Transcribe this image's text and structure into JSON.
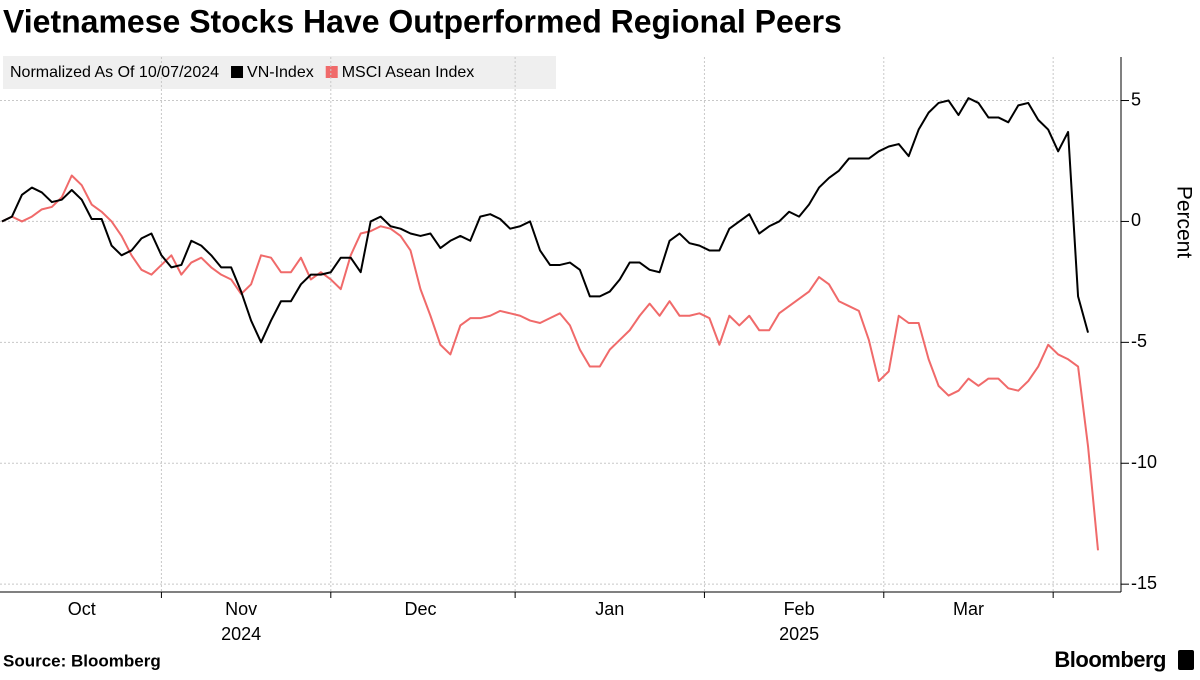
{
  "chart_data": {
    "type": "line",
    "title": "Vietnamese Stocks Have Outperformed Regional Peers",
    "subtitle": "Normalized As Of 10/07/2024",
    "y_label": "Percent",
    "source": "Source: Bloomberg",
    "brand": "Bloomberg",
    "categories": [
      null,
      null,
      null,
      null,
      null,
      null,
      null,
      null,
      "Oct",
      null,
      null,
      null,
      null,
      null,
      null,
      null,
      null,
      null,
      null,
      null,
      null,
      null,
      null,
      null,
      "Nov",
      null,
      null,
      null,
      null,
      null,
      null,
      null,
      null,
      null,
      null,
      null,
      null,
      null,
      null,
      null,
      null,
      null,
      "Dec",
      null,
      null,
      null,
      null,
      null,
      null,
      null,
      null,
      null,
      null,
      null,
      null,
      null,
      null,
      null,
      null,
      null,
      null,
      "Jan",
      null,
      null,
      null,
      null,
      null,
      null,
      null,
      null,
      null,
      null,
      null,
      null,
      null,
      null,
      null,
      null,
      null,
      null,
      "Feb",
      null,
      null,
      null,
      null,
      null,
      null,
      null,
      null,
      null,
      null,
      null,
      null,
      null,
      null,
      null,
      null,
      "Mar",
      null,
      null,
      null,
      null,
      null,
      null,
      null,
      null,
      null,
      null,
      null,
      null,
      null
    ],
    "years": [
      null,
      null,
      null,
      null,
      null,
      null,
      null,
      null,
      null,
      null,
      null,
      null,
      null,
      null,
      null,
      null,
      null,
      null,
      null,
      null,
      null,
      null,
      null,
      null,
      "2024",
      null,
      null,
      null,
      null,
      null,
      null,
      null,
      null,
      null,
      null,
      null,
      null,
      null,
      null,
      null,
      null,
      null,
      null,
      null,
      null,
      null,
      null,
      null,
      null,
      null,
      null,
      null,
      null,
      null,
      null,
      null,
      null,
      null,
      null,
      null,
      null,
      null,
      null,
      null,
      null,
      null,
      null,
      null,
      null,
      null,
      null,
      null,
      null,
      null,
      null,
      null,
      null,
      null,
      null,
      null,
      "2025",
      null,
      null,
      null,
      null,
      null,
      null,
      null,
      null,
      null,
      null,
      null,
      null,
      null,
      null,
      null,
      null,
      null,
      null,
      null,
      null,
      null,
      null,
      null,
      null,
      null,
      null,
      null,
      null,
      null,
      null
    ],
    "series": [
      {
        "name": "VN-Index",
        "color": "#000000",
        "values": [
          0.0,
          0.2,
          1.1,
          1.4,
          1.2,
          0.8,
          0.9,
          1.3,
          0.9,
          0.1,
          0.1,
          -1.0,
          -1.4,
          -1.2,
          -0.7,
          -0.5,
          -1.4,
          -1.9,
          -1.8,
          -0.8,
          -1.0,
          -1.4,
          -1.9,
          -1.9,
          -2.9,
          -4.1,
          -5.0,
          -4.1,
          -3.3,
          -3.3,
          -2.6,
          -2.2,
          -2.2,
          -2.1,
          -1.5,
          -1.5,
          -2.1,
          0.0,
          0.2,
          -0.2,
          -0.3,
          -0.5,
          -0.6,
          -0.5,
          -1.1,
          -0.8,
          -0.6,
          -0.8,
          0.2,
          0.3,
          0.1,
          -0.3,
          -0.2,
          0.0,
          -1.2,
          -1.8,
          -1.8,
          -1.7,
          -2.0,
          -3.1,
          -3.1,
          -2.9,
          -2.4,
          -1.7,
          -1.7,
          -2.0,
          -2.1,
          -0.8,
          -0.5,
          -0.9,
          -1.0,
          -1.2,
          -1.2,
          -0.3,
          0.0,
          0.3,
          -0.5,
          -0.2,
          0.0,
          0.4,
          0.2,
          0.7,
          1.4,
          1.8,
          2.1,
          2.6,
          2.6,
          2.6,
          2.9,
          3.1,
          3.2,
          2.7,
          3.8,
          4.5,
          4.9,
          5.0,
          4.4,
          5.1,
          4.9,
          4.3,
          4.3,
          4.1,
          4.8,
          4.9,
          4.2,
          3.8,
          2.9,
          3.7,
          -3.1,
          -4.6,
          null
        ]
      },
      {
        "name": "MSCI Asean Index",
        "color": "#f06a6a",
        "values": [
          0.0,
          0.2,
          0.0,
          0.2,
          0.5,
          0.6,
          1.0,
          1.9,
          1.5,
          0.7,
          0.4,
          0.0,
          -0.6,
          -1.4,
          -2.0,
          -2.2,
          -1.8,
          -1.4,
          -2.2,
          -1.7,
          -1.5,
          -1.9,
          -2.2,
          -2.4,
          -3.0,
          -2.6,
          -1.4,
          -1.5,
          -2.1,
          -2.1,
          -1.5,
          -2.4,
          -2.1,
          -2.4,
          -2.8,
          -1.4,
          -0.5,
          -0.4,
          -0.2,
          -0.3,
          -0.6,
          -1.2,
          -2.8,
          -3.9,
          -5.1,
          -5.5,
          -4.3,
          -4.0,
          -4.0,
          -3.9,
          -3.7,
          -3.8,
          -3.9,
          -4.1,
          -4.2,
          -4.0,
          -3.8,
          -4.3,
          -5.3,
          -6.0,
          -6.0,
          -5.3,
          -4.9,
          -4.5,
          -3.9,
          -3.4,
          -3.9,
          -3.3,
          -3.9,
          -3.9,
          -3.8,
          -4.0,
          -5.1,
          -3.9,
          -4.3,
          -3.9,
          -4.5,
          -4.5,
          -3.8,
          -3.5,
          -3.2,
          -2.9,
          -2.3,
          -2.6,
          -3.3,
          -3.5,
          -3.7,
          -4.9,
          -6.6,
          -6.2,
          -3.9,
          -4.2,
          -4.2,
          -5.7,
          -6.8,
          -7.2,
          -7.0,
          -6.5,
          -6.8,
          -6.5,
          -6.5,
          -6.9,
          -7.0,
          -6.6,
          -6.0,
          -5.1,
          -5.5,
          -5.7,
          -6.0,
          -9.3,
          -13.6
        ]
      }
    ],
    "ylim": [
      -15.2,
      6.8
    ],
    "yticks": [
      -15,
      -10,
      -5,
      0,
      5
    ],
    "y_axis_side": "right",
    "grid": true,
    "legend": "top-left"
  }
}
